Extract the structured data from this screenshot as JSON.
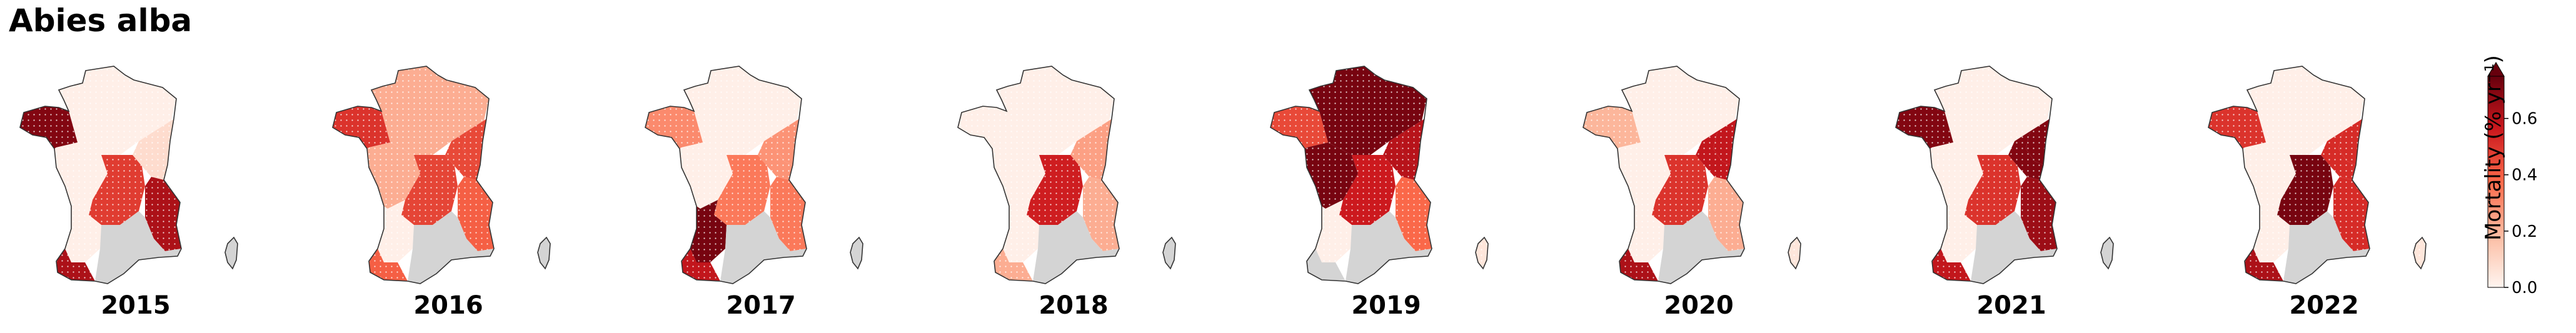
{
  "title": "Abies alba",
  "colors": {
    "scale": [
      "#fff5f0",
      "#fcbba1",
      "#fb6a4a",
      "#cb181d",
      "#67000d"
    ],
    "nodata": "#d4d4d4"
  },
  "region_names": [
    "Brittany",
    "North",
    "Northeast",
    "Centre",
    "Massif Central",
    "Alps",
    "Jura",
    "Southwest",
    "Pyrenees",
    "Mediterranean",
    "Corsica"
  ],
  "years": [
    {
      "label": "2015",
      "values": {
        "Brittany": 0.7,
        "North": 0.02,
        "Northeast": 0.08,
        "Centre": 0.02,
        "Massif Central": 0.48,
        "Alps": 0.62,
        "Jura": 0.08,
        "Southwest": 0.02,
        "Pyrenees": 0.62,
        "Mediterranean": null,
        "Corsica": null
      }
    },
    {
      "label": "2016",
      "values": {
        "Brittany": 0.5,
        "North": 0.22,
        "Northeast": 0.45,
        "Centre": 0.22,
        "Massif Central": 0.46,
        "Alps": 0.4,
        "Jura": 0.45,
        "Southwest": 0.02,
        "Pyrenees": 0.4,
        "Mediterranean": null,
        "Corsica": null
      }
    },
    {
      "label": "2017",
      "values": {
        "Brittany": 0.3,
        "North": 0.02,
        "Northeast": 0.28,
        "Centre": 0.02,
        "Massif Central": 0.34,
        "Alps": 0.34,
        "Jura": 0.28,
        "Southwest": 0.72,
        "Pyrenees": 0.58,
        "Mediterranean": null,
        "Corsica": null
      }
    },
    {
      "label": "2018",
      "values": {
        "Brittany": 0.02,
        "North": 0.02,
        "Northeast": 0.25,
        "Centre": 0.02,
        "Massif Central": 0.55,
        "Alps": 0.22,
        "Jura": 0.25,
        "Southwest": 0.02,
        "Pyrenees": 0.22,
        "Mediterranean": null,
        "Corsica": null
      }
    },
    {
      "label": "2019",
      "values": {
        "Brittany": 0.45,
        "North": 0.72,
        "Northeast": 0.6,
        "Centre": 0.72,
        "Massif Central": 0.56,
        "Alps": 0.38,
        "Jura": 0.6,
        "Southwest": 0.02,
        "Pyrenees": null,
        "Mediterranean": null,
        "Corsica": 0.05
      }
    },
    {
      "label": "2020",
      "values": {
        "Brittany": 0.2,
        "North": 0.02,
        "Northeast": 0.58,
        "Centre": 0.02,
        "Massif Central": 0.5,
        "Alps": 0.22,
        "Jura": 0.58,
        "Southwest": 0.02,
        "Pyrenees": 0.62,
        "Mediterranean": null,
        "Corsica": 0.05
      }
    },
    {
      "label": "2021",
      "values": {
        "Brittany": 0.7,
        "North": 0.02,
        "Northeast": 0.7,
        "Centre": 0.02,
        "Massif Central": 0.5,
        "Alps": 0.65,
        "Jura": 0.7,
        "Southwest": 0.02,
        "Pyrenees": 0.58,
        "Mediterranean": null,
        "Corsica": null
      }
    },
    {
      "label": "2022",
      "values": {
        "Brittany": 0.5,
        "North": 0.02,
        "Northeast": 0.52,
        "Centre": 0.02,
        "Massif Central": 0.72,
        "Alps": 0.52,
        "Jura": 0.52,
        "Southwest": 0.02,
        "Pyrenees": 0.62,
        "Mediterranean": null,
        "Corsica": 0.05
      }
    }
  ],
  "colorbar": {
    "label": "Mortality (% yr⁻¹)",
    "min": 0,
    "max": 0.75,
    "ticks": [
      "0.0",
      "0.2",
      "0.4",
      "0.6"
    ],
    "extend": "max"
  }
}
